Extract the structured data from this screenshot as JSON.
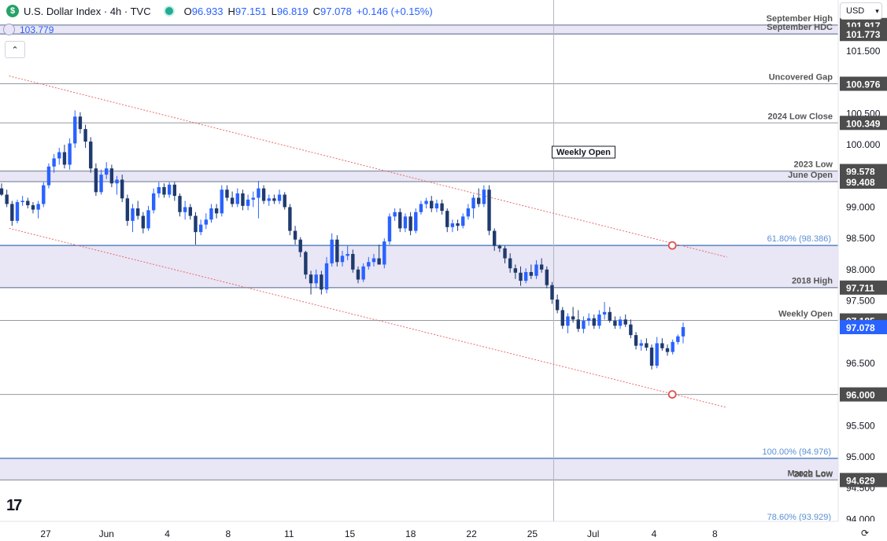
{
  "header": {
    "logo_glyph": "$",
    "symbol": "U.S. Dollar Index · 4h · TVC",
    "open_label": "O",
    "open": "96.933",
    "high_label": "H",
    "high": "97.151",
    "low_label": "L",
    "low": "96.819",
    "close_label": "C",
    "close": "97.078",
    "change": "+0.146 (+0.15%)"
  },
  "alert_value": "103.779",
  "collapse_glyph": "⌃",
  "currency": "USD",
  "currency_caret": "▾",
  "tv_logo": "17",
  "reset_glyph": "⟳",
  "colors": {
    "up_candle": "#2962ff",
    "down_candle": "#1f3a6e",
    "zone_fill": "#e9e6f5",
    "zone_border": "#3b6fb5",
    "level_line": "#9598a1",
    "channel": "#e86b6b",
    "marker": "#e05050",
    "price_tag": "#4d4d4d",
    "current_tag": "#2962ff"
  },
  "chart_data": {
    "type": "candlestick",
    "title": "U.S. Dollar Index · 4h · TVC",
    "y_axis": {
      "side": "right",
      "range": [
        93.88,
        102.2
      ],
      "ticks": [
        "101.500",
        "100.500",
        "100.000",
        "99.000",
        "98.500",
        "98.000",
        "97.500",
        "96.500",
        "95.500",
        "95.000",
        "94.500",
        "94.000"
      ]
    },
    "x_axis": {
      "ticks": [
        {
          "label": "27",
          "pos": 0.0
        },
        {
          "label": "Jun",
          "pos": 0.1
        },
        {
          "label": "4",
          "pos": 0.2
        },
        {
          "label": "8",
          "pos": 0.3
        },
        {
          "label": "11",
          "pos": 0.4
        },
        {
          "label": "15",
          "pos": 0.5
        },
        {
          "label": "18",
          "pos": 0.6
        },
        {
          "label": "22",
          "pos": 0.7
        },
        {
          "label": "25",
          "pos": 0.8
        },
        {
          "label": "Jul",
          "pos": 0.9
        },
        {
          "label": "4",
          "pos": 1.0
        },
        {
          "label": "8",
          "pos": 1.1
        }
      ]
    },
    "price_levels": [
      {
        "label": "September High",
        "price": 101.917,
        "tag": "101.917"
      },
      {
        "label": "September HDC",
        "price": 101.773,
        "tag": "101.773"
      },
      {
        "label": "Uncovered Gap",
        "price": 100.976,
        "tag": "100.976"
      },
      {
        "label": "2024 Low Close",
        "price": 100.349,
        "tag": "100.349"
      },
      {
        "label": "2023 Low",
        "price": 99.578,
        "tag": "99.578"
      },
      {
        "label": "June Open",
        "price": 99.408,
        "tag": "99.408"
      },
      {
        "label": "2018 High",
        "price": 97.711,
        "tag": "97.711"
      },
      {
        "label": "Weekly Open",
        "price": 97.185,
        "tag": "97.185"
      },
      {
        "label": "",
        "price": 96.0,
        "tag": "96.000"
      },
      {
        "label": "March Low",
        "price": 94.629,
        "tag": "94.629"
      }
    ],
    "fib_levels": [
      {
        "label": "61.80% (98.386)",
        "price": 98.386
      },
      {
        "label": "100.00% (94.976)",
        "price": 94.976
      },
      {
        "label": "78.60% (93.929)",
        "price": 93.929
      }
    ],
    "zones": [
      {
        "from": 101.773,
        "to": 101.917
      },
      {
        "from": 99.408,
        "to": 99.578
      },
      {
        "from": 97.711,
        "to": 98.386
      },
      {
        "from": 94.629,
        "to": 94.976
      }
    ],
    "zone_labels": [
      "2022 Low"
    ],
    "current_price": {
      "value": 97.078,
      "tag": "97.078"
    },
    "annotations": [
      {
        "text": "Weekly Open"
      }
    ],
    "channel": {
      "upper": [
        {
          "pos": -0.06,
          "price": 101.1
        },
        {
          "pos": 1.12,
          "price": 98.2
        }
      ],
      "lower": [
        {
          "pos": -0.06,
          "price": 98.66
        },
        {
          "pos": 1.12,
          "price": 95.79
        }
      ]
    },
    "markers": [
      {
        "pos": 1.03,
        "price": 98.386
      },
      {
        "pos": 1.03,
        "price": 96.0
      }
    ],
    "vertical_marker": {
      "pos": 0.835
    },
    "candles": [
      [
        99.3,
        99.38,
        99.18,
        99.2
      ],
      [
        99.2,
        99.28,
        99.0,
        99.05
      ],
      [
        99.05,
        99.1,
        98.7,
        98.78
      ],
      [
        98.78,
        99.12,
        98.74,
        99.08
      ],
      [
        99.08,
        99.18,
        99.02,
        99.1
      ],
      [
        99.1,
        99.15,
        98.98,
        99.03
      ],
      [
        99.03,
        99.08,
        98.9,
        98.96
      ],
      [
        98.96,
        99.1,
        98.82,
        99.05
      ],
      [
        99.05,
        99.4,
        99.0,
        99.35
      ],
      [
        99.35,
        99.7,
        99.3,
        99.65
      ],
      [
        99.65,
        99.85,
        99.55,
        99.78
      ],
      [
        99.78,
        99.95,
        99.68,
        99.88
      ],
      [
        99.88,
        100.0,
        99.62,
        99.68
      ],
      [
        99.68,
        100.1,
        99.6,
        100.02
      ],
      [
        100.02,
        100.55,
        99.95,
        100.45
      ],
      [
        100.45,
        100.52,
        100.18,
        100.25
      ],
      [
        100.25,
        100.32,
        99.95,
        100.05
      ],
      [
        100.05,
        100.12,
        99.55,
        99.62
      ],
      [
        99.62,
        99.7,
        99.18,
        99.24
      ],
      [
        99.24,
        99.6,
        99.2,
        99.52
      ],
      [
        99.52,
        99.72,
        99.45,
        99.62
      ],
      [
        99.62,
        99.68,
        99.32,
        99.38
      ],
      [
        99.38,
        99.5,
        99.2,
        99.44
      ],
      [
        99.44,
        99.52,
        99.08,
        99.14
      ],
      [
        99.14,
        99.2,
        98.7,
        98.78
      ],
      [
        98.78,
        99.05,
        98.6,
        98.98
      ],
      [
        98.98,
        99.1,
        98.8,
        98.86
      ],
      [
        98.86,
        98.92,
        98.58,
        98.66
      ],
      [
        98.66,
        99.02,
        98.62,
        98.95
      ],
      [
        98.95,
        99.3,
        98.9,
        99.22
      ],
      [
        99.22,
        99.4,
        99.15,
        99.32
      ],
      [
        99.32,
        99.38,
        99.15,
        99.2
      ],
      [
        99.2,
        99.4,
        99.15,
        99.36
      ],
      [
        99.36,
        99.4,
        99.1,
        99.18
      ],
      [
        99.18,
        99.22,
        98.85,
        98.92
      ],
      [
        98.92,
        99.1,
        98.8,
        99.0
      ],
      [
        99.0,
        99.05,
        98.8,
        98.86
      ],
      [
        98.86,
        98.92,
        98.4,
        98.6
      ],
      [
        98.6,
        98.8,
        98.55,
        98.72
      ],
      [
        98.72,
        98.9,
        98.65,
        98.8
      ],
      [
        98.8,
        99.05,
        98.75,
        98.98
      ],
      [
        98.98,
        99.05,
        98.82,
        98.9
      ],
      [
        98.9,
        99.35,
        98.85,
        99.28
      ],
      [
        99.28,
        99.35,
        99.1,
        99.15
      ],
      [
        99.15,
        99.25,
        99.0,
        99.05
      ],
      [
        99.05,
        99.3,
        99.0,
        99.22
      ],
      [
        99.22,
        99.28,
        98.95,
        99.02
      ],
      [
        99.02,
        99.2,
        98.95,
        99.12
      ],
      [
        99.12,
        99.25,
        99.0,
        99.15
      ],
      [
        99.15,
        99.42,
        98.82,
        99.3
      ],
      [
        99.3,
        99.35,
        99.05,
        99.1
      ],
      [
        99.1,
        99.2,
        99.02,
        99.14
      ],
      [
        99.14,
        99.2,
        99.05,
        99.1
      ],
      [
        99.1,
        99.28,
        99.05,
        99.2
      ],
      [
        99.2,
        99.24,
        98.96,
        99.0
      ],
      [
        99.0,
        99.05,
        98.55,
        98.62
      ],
      [
        98.62,
        98.7,
        98.4,
        98.48
      ],
      [
        98.48,
        98.52,
        98.2,
        98.28
      ],
      [
        98.28,
        98.3,
        97.85,
        97.92
      ],
      [
        97.92,
        97.98,
        97.6,
        97.78
      ],
      [
        97.78,
        98.0,
        97.7,
        97.92
      ],
      [
        97.92,
        97.98,
        97.6,
        97.68
      ],
      [
        97.68,
        98.2,
        97.62,
        98.1
      ],
      [
        98.1,
        98.58,
        98.05,
        98.48
      ],
      [
        98.48,
        98.55,
        98.05,
        98.12
      ],
      [
        98.12,
        98.3,
        98.05,
        98.22
      ],
      [
        98.22,
        98.38,
        98.15,
        98.25
      ],
      [
        98.25,
        98.32,
        97.95,
        98.0
      ],
      [
        98.0,
        98.05,
        97.78,
        97.84
      ],
      [
        97.84,
        98.1,
        97.8,
        98.05
      ],
      [
        98.05,
        98.2,
        98.0,
        98.12
      ],
      [
        98.12,
        98.25,
        98.05,
        98.18
      ],
      [
        98.18,
        98.4,
        98.1,
        98.08
      ],
      [
        98.08,
        98.5,
        98.02,
        98.45
      ],
      [
        98.45,
        98.9,
        98.4,
        98.85
      ],
      [
        98.85,
        98.98,
        98.78,
        98.92
      ],
      [
        98.92,
        98.98,
        98.6,
        98.66
      ],
      [
        98.66,
        98.9,
        98.6,
        98.85
      ],
      [
        98.85,
        98.92,
        98.55,
        98.62
      ],
      [
        98.62,
        98.98,
        98.58,
        98.92
      ],
      [
        98.92,
        99.1,
        98.88,
        99.05
      ],
      [
        99.05,
        99.15,
        98.98,
        99.1
      ],
      [
        99.1,
        99.18,
        98.92,
        98.98
      ],
      [
        98.98,
        99.12,
        98.92,
        99.06
      ],
      [
        99.06,
        99.12,
        98.88,
        98.94
      ],
      [
        98.94,
        98.98,
        98.6,
        98.68
      ],
      [
        98.68,
        98.8,
        98.6,
        98.74
      ],
      [
        98.74,
        98.8,
        98.62,
        98.7
      ],
      [
        98.7,
        98.9,
        98.66,
        98.85
      ],
      [
        98.85,
        99.05,
        98.8,
        98.98
      ],
      [
        98.98,
        99.2,
        98.82,
        99.15
      ],
      [
        99.15,
        99.3,
        99.0,
        99.05
      ],
      [
        99.05,
        99.35,
        99.0,
        99.28
      ],
      [
        99.28,
        99.35,
        98.55,
        98.62
      ],
      [
        98.62,
        98.66,
        98.3,
        98.38
      ],
      [
        98.38,
        98.4,
        98.28,
        98.34
      ],
      [
        98.34,
        98.38,
        98.1,
        98.18
      ],
      [
        98.18,
        98.26,
        97.95,
        98.02
      ],
      [
        98.02,
        98.08,
        97.85,
        97.95
      ],
      [
        97.95,
        98.05,
        97.74,
        97.82
      ],
      [
        97.82,
        98.02,
        97.78,
        97.96
      ],
      [
        97.96,
        98.08,
        97.85,
        97.9
      ],
      [
        97.9,
        98.15,
        97.85,
        98.08
      ],
      [
        98.08,
        98.18,
        97.95,
        98.0
      ],
      [
        98.0,
        98.05,
        97.7,
        97.75
      ],
      [
        97.75,
        97.8,
        97.45,
        97.52
      ],
      [
        97.52,
        97.6,
        97.3,
        97.35
      ],
      [
        97.35,
        97.4,
        97.05,
        97.1
      ],
      [
        97.1,
        97.3,
        96.98,
        97.25
      ],
      [
        97.25,
        97.4,
        97.15,
        97.2
      ],
      [
        97.2,
        97.35,
        97.0,
        97.05
      ],
      [
        97.05,
        97.25,
        96.98,
        97.18
      ],
      [
        97.18,
        97.3,
        97.1,
        97.22
      ],
      [
        97.22,
        97.28,
        97.05,
        97.1
      ],
      [
        97.1,
        97.35,
        97.05,
        97.28
      ],
      [
        97.28,
        97.48,
        97.2,
        97.32
      ],
      [
        97.32,
        97.4,
        97.15,
        97.18
      ],
      [
        97.18,
        97.25,
        97.05,
        97.1
      ],
      [
        97.1,
        97.25,
        97.05,
        97.2
      ],
      [
        97.2,
        97.28,
        97.08,
        97.12
      ],
      [
        97.12,
        97.2,
        96.9,
        96.95
      ],
      [
        96.95,
        97.0,
        96.72,
        96.78
      ],
      [
        96.78,
        96.88,
        96.7,
        96.82
      ],
      [
        96.82,
        96.9,
        96.7,
        96.75
      ],
      [
        96.75,
        96.8,
        96.4,
        96.46
      ],
      [
        96.46,
        96.92,
        96.42,
        96.82
      ],
      [
        96.82,
        96.9,
        96.7,
        96.74
      ],
      [
        96.74,
        96.8,
        96.62,
        96.68
      ],
      [
        96.68,
        96.88,
        96.64,
        96.84
      ],
      [
        96.84,
        96.96,
        96.8,
        96.93
      ],
      [
        96.93,
        97.151,
        96.819,
        97.078
      ]
    ]
  }
}
